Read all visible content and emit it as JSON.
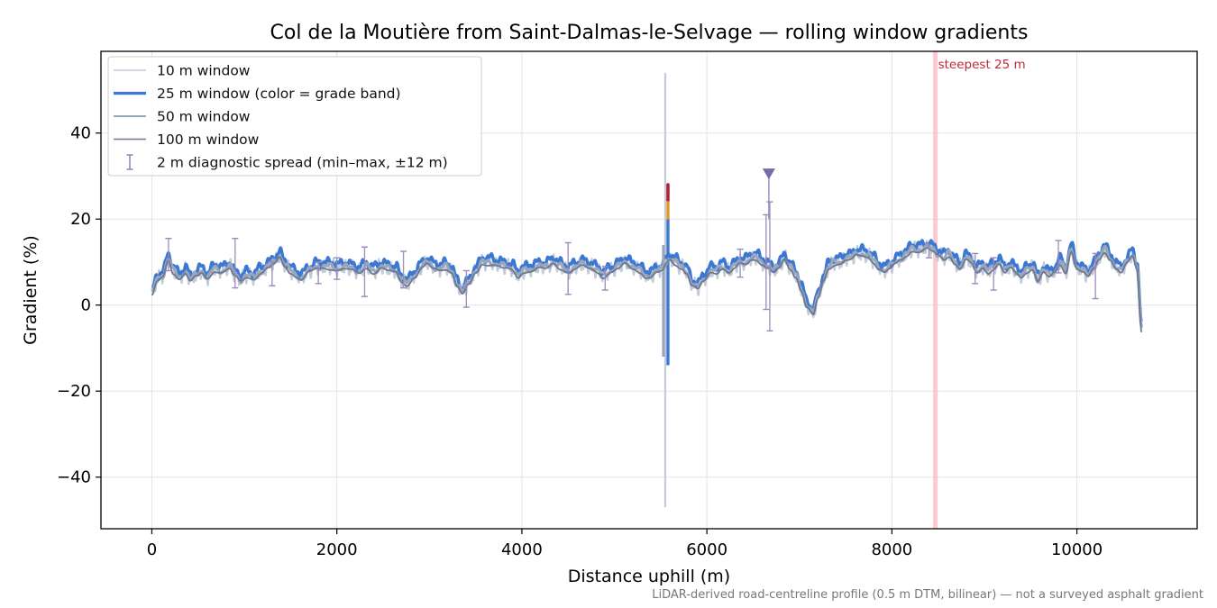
{
  "chart_data": {
    "type": "line",
    "title": "Col de la Moutière from Saint-Dalmas-le-Selvage — rolling window gradients",
    "xlabel": "Distance uphill (m)",
    "ylabel": "Gradient (%)",
    "xlim": [
      -550,
      11300
    ],
    "ylim": [
      -52,
      59
    ],
    "xticks": [
      0,
      2000,
      4000,
      6000,
      8000,
      10000
    ],
    "yticks": [
      -40,
      -20,
      0,
      20,
      40
    ],
    "xtick_labels": [
      "0",
      "2000",
      "4000",
      "6000",
      "8000",
      "10000"
    ],
    "ytick_labels": [
      "−40",
      "−20",
      "0",
      "20",
      "40"
    ],
    "grid": true,
    "legend_position": "top-left",
    "legend": [
      {
        "label": "10 m window",
        "color": "#c3cad8"
      },
      {
        "label": "25 m window (color = grade band)",
        "color": "#3a78d4"
      },
      {
        "label": "50 m window",
        "color": "#9aa6ba"
      },
      {
        "label": "100 m window",
        "color": "#6c7890"
      },
      {
        "label": "2 m diagnostic spread (min–max, ±12 m)",
        "color": "#9988bb"
      }
    ],
    "profile_points": [
      [
        0,
        2.5
      ],
      [
        60,
        6
      ],
      [
        120,
        7
      ],
      [
        180,
        11
      ],
      [
        230,
        8
      ],
      [
        300,
        6.5
      ],
      [
        360,
        8
      ],
      [
        420,
        6
      ],
      [
        480,
        7
      ],
      [
        540,
        8
      ],
      [
        600,
        6.5
      ],
      [
        680,
        8.5
      ],
      [
        760,
        8
      ],
      [
        840,
        9
      ],
      [
        900,
        7
      ],
      [
        960,
        6
      ],
      [
        1020,
        7
      ],
      [
        1100,
        6.5
      ],
      [
        1180,
        8
      ],
      [
        1260,
        9
      ],
      [
        1320,
        10
      ],
      [
        1380,
        11.5
      ],
      [
        1440,
        9.5
      ],
      [
        1500,
        8
      ],
      [
        1560,
        7
      ],
      [
        1620,
        6.5
      ],
      [
        1700,
        8
      ],
      [
        1780,
        9
      ],
      [
        1860,
        9
      ],
      [
        1940,
        9
      ],
      [
        2000,
        8.5
      ],
      [
        2080,
        9
      ],
      [
        2160,
        8.5
      ],
      [
        2240,
        8
      ],
      [
        2320,
        9
      ],
      [
        2400,
        8
      ],
      [
        2480,
        9
      ],
      [
        2560,
        8.5
      ],
      [
        2640,
        8
      ],
      [
        2700,
        6
      ],
      [
        2760,
        5
      ],
      [
        2840,
        7
      ],
      [
        2920,
        9
      ],
      [
        2980,
        10
      ],
      [
        3040,
        9
      ],
      [
        3100,
        8.5
      ],
      [
        3180,
        9
      ],
      [
        3240,
        8
      ],
      [
        3300,
        5
      ],
      [
        3360,
        3
      ],
      [
        3420,
        5
      ],
      [
        3500,
        8
      ],
      [
        3580,
        10
      ],
      [
        3660,
        10
      ],
      [
        3740,
        9.5
      ],
      [
        3820,
        9
      ],
      [
        3900,
        8.5
      ],
      [
        3960,
        7
      ],
      [
        4020,
        8
      ],
      [
        4100,
        8.5
      ],
      [
        4180,
        9
      ],
      [
        4260,
        9
      ],
      [
        4340,
        10
      ],
      [
        4420,
        9
      ],
      [
        4500,
        8
      ],
      [
        4580,
        9
      ],
      [
        4660,
        9.5
      ],
      [
        4740,
        9
      ],
      [
        4820,
        8
      ],
      [
        4880,
        7
      ],
      [
        4960,
        8
      ],
      [
        5040,
        9
      ],
      [
        5120,
        10
      ],
      [
        5200,
        9
      ],
      [
        5280,
        8
      ],
      [
        5340,
        7
      ],
      [
        5400,
        7
      ],
      [
        5460,
        8
      ],
      [
        5520,
        8.5
      ],
      [
        5560,
        10
      ],
      [
        5600,
        11
      ],
      [
        5660,
        10
      ],
      [
        5720,
        9
      ],
      [
        5780,
        8
      ],
      [
        5840,
        5
      ],
      [
        5900,
        4
      ],
      [
        5960,
        6
      ],
      [
        6040,
        8
      ],
      [
        6100,
        8
      ],
      [
        6160,
        9
      ],
      [
        6240,
        8
      ],
      [
        6300,
        9
      ],
      [
        6360,
        10
      ],
      [
        6420,
        10
      ],
      [
        6480,
        11
      ],
      [
        6540,
        11
      ],
      [
        6600,
        10
      ],
      [
        6660,
        9
      ],
      [
        6720,
        8
      ],
      [
        6780,
        9
      ],
      [
        6840,
        11
      ],
      [
        6900,
        9
      ],
      [
        6960,
        7
      ],
      [
        7020,
        4
      ],
      [
        7080,
        0
      ],
      [
        7150,
        -2
      ],
      [
        7200,
        2
      ],
      [
        7260,
        6
      ],
      [
        7320,
        9
      ],
      [
        7380,
        10
      ],
      [
        7440,
        10
      ],
      [
        7500,
        11
      ],
      [
        7560,
        11
      ],
      [
        7620,
        12
      ],
      [
        7680,
        12
      ],
      [
        7740,
        11.5
      ],
      [
        7800,
        10.5
      ],
      [
        7860,
        9
      ],
      [
        7920,
        8
      ],
      [
        7980,
        9
      ],
      [
        8040,
        10
      ],
      [
        8100,
        11
      ],
      [
        8160,
        12
      ],
      [
        8220,
        13
      ],
      [
        8300,
        13
      ],
      [
        8380,
        13.5
      ],
      [
        8440,
        13
      ],
      [
        8500,
        12
      ],
      [
        8560,
        11
      ],
      [
        8620,
        12
      ],
      [
        8680,
        10
      ],
      [
        8740,
        9
      ],
      [
        8800,
        11
      ],
      [
        8860,
        10
      ],
      [
        8920,
        8
      ],
      [
        8980,
        9
      ],
      [
        9040,
        8
      ],
      [
        9100,
        9
      ],
      [
        9160,
        10
      ],
      [
        9220,
        8
      ],
      [
        9280,
        9
      ],
      [
        9340,
        8
      ],
      [
        9400,
        7
      ],
      [
        9460,
        8
      ],
      [
        9520,
        9
      ],
      [
        9580,
        6
      ],
      [
        9640,
        8
      ],
      [
        9700,
        7
      ],
      [
        9760,
        8
      ],
      [
        9820,
        10
      ],
      [
        9880,
        8
      ],
      [
        9940,
        13
      ],
      [
        10000,
        9
      ],
      [
        10060,
        8
      ],
      [
        10120,
        7
      ],
      [
        10180,
        9
      ],
      [
        10240,
        11
      ],
      [
        10300,
        13
      ],
      [
        10360,
        11
      ],
      [
        10420,
        9
      ],
      [
        10480,
        8
      ],
      [
        10540,
        10
      ],
      [
        10600,
        12
      ],
      [
        10650,
        9
      ],
      [
        10700,
        -6
      ]
    ],
    "spike": {
      "x": 5550,
      "min_10m": -47,
      "max_10m": 54,
      "min_25m": -14,
      "max_25m": 28
    },
    "spread_bars": [
      {
        "x": 180,
        "min": 8,
        "max": 15.5
      },
      {
        "x": 900,
        "min": 4,
        "max": 15.5
      },
      {
        "x": 1300,
        "min": 4.5,
        "max": 10
      },
      {
        "x": 1800,
        "min": 5,
        "max": 10
      },
      {
        "x": 2000,
        "min": 6,
        "max": 11
      },
      {
        "x": 2300,
        "min": 2,
        "max": 13.5
      },
      {
        "x": 2720,
        "min": 4,
        "max": 12.5
      },
      {
        "x": 3400,
        "min": -0.5,
        "max": 8
      },
      {
        "x": 4500,
        "min": 2.5,
        "max": 14.5
      },
      {
        "x": 4900,
        "min": 3.5,
        "max": 9
      },
      {
        "x": 6360,
        "min": 6.5,
        "max": 13
      },
      {
        "x": 6640,
        "min": -1,
        "max": 21
      },
      {
        "x": 6680,
        "min": -6,
        "max": 24
      },
      {
        "x": 8400,
        "min": 11,
        "max": 14
      },
      {
        "x": 8900,
        "min": 5,
        "max": 12
      },
      {
        "x": 9100,
        "min": 3.5,
        "max": 11
      },
      {
        "x": 9800,
        "min": 7.5,
        "max": 15
      },
      {
        "x": 10200,
        "min": 1.5,
        "max": 12
      }
    ],
    "max_marker": {
      "x": 6670,
      "y": 30.5
    },
    "steepest_25m": {
      "x": 8470,
      "label": "steepest 25 m"
    },
    "grade_band_colors": [
      "#3a78d4",
      "#e39a1c",
      "#b3203a"
    ],
    "note": "LiDAR-derived road-centreline profile (0.5 m DTM, bilinear) — not a surveyed asphalt gradient"
  }
}
